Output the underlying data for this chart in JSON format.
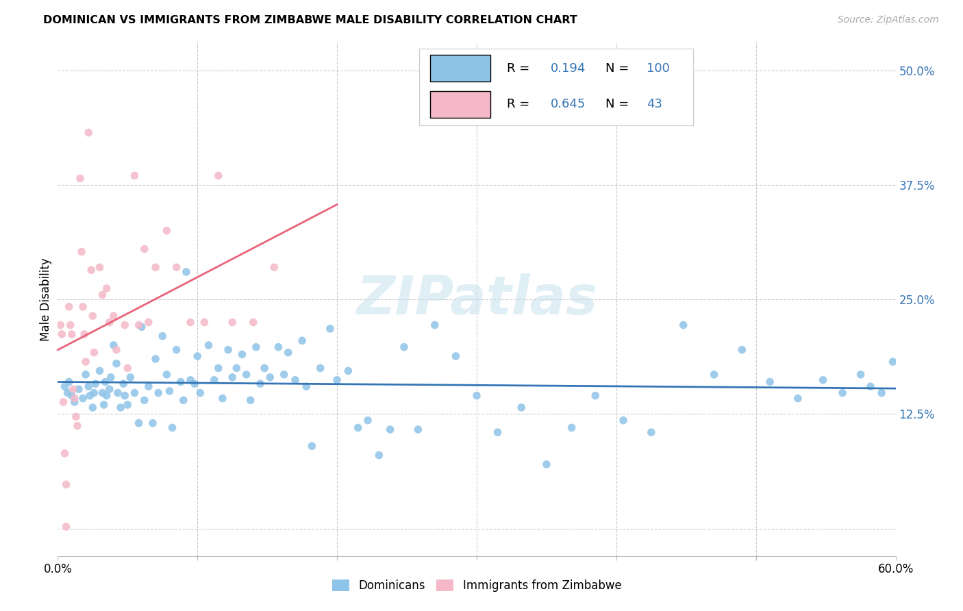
{
  "title": "DOMINICAN VS IMMIGRANTS FROM ZIMBABWE MALE DISABILITY CORRELATION CHART",
  "source": "Source: ZipAtlas.com",
  "ylabel": "Male Disability",
  "xlim": [
    0.0,
    0.6
  ],
  "ylim": [
    -0.03,
    0.53
  ],
  "xtick_positions": [
    0.0,
    0.1,
    0.2,
    0.3,
    0.4,
    0.5,
    0.6
  ],
  "xticklabels": [
    "0.0%",
    "",
    "",
    "",
    "",
    "",
    "60.0%"
  ],
  "ytick_positions": [
    0.0,
    0.125,
    0.25,
    0.375,
    0.5
  ],
  "ytick_labels_right": [
    "",
    "12.5%",
    "25.0%",
    "37.5%",
    "50.0%"
  ],
  "dominicans_R": "0.194",
  "dominicans_N": "100",
  "zimbabwe_R": "0.645",
  "zimbabwe_N": "43",
  "blue_scatter_color": "#8ec4e8",
  "pink_scatter_color": "#f4b8c8",
  "blue_line_color": "#3575b5",
  "pink_line_color": "#e8637a",
  "legend_text_color": "#3575b5",
  "legend_label_blue": "Dominicans",
  "legend_label_pink": "Immigrants from Zimbabwe",
  "watermark": "ZIPatlas",
  "dominicans_x": [
    0.005,
    0.007,
    0.008,
    0.01,
    0.012,
    0.015,
    0.018,
    0.02,
    0.022,
    0.023,
    0.025,
    0.026,
    0.027,
    0.03,
    0.032,
    0.033,
    0.034,
    0.035,
    0.037,
    0.038,
    0.04,
    0.042,
    0.043,
    0.045,
    0.047,
    0.048,
    0.05,
    0.052,
    0.055,
    0.058,
    0.06,
    0.062,
    0.065,
    0.068,
    0.07,
    0.072,
    0.075,
    0.078,
    0.08,
    0.082,
    0.085,
    0.088,
    0.09,
    0.092,
    0.095,
    0.098,
    0.1,
    0.102,
    0.108,
    0.112,
    0.115,
    0.118,
    0.122,
    0.125,
    0.128,
    0.132,
    0.135,
    0.138,
    0.142,
    0.145,
    0.148,
    0.152,
    0.158,
    0.162,
    0.165,
    0.17,
    0.175,
    0.178,
    0.182,
    0.188,
    0.195,
    0.2,
    0.208,
    0.215,
    0.222,
    0.23,
    0.238,
    0.248,
    0.258,
    0.27,
    0.285,
    0.3,
    0.315,
    0.332,
    0.35,
    0.368,
    0.385,
    0.405,
    0.425,
    0.448,
    0.47,
    0.49,
    0.51,
    0.53,
    0.548,
    0.562,
    0.575,
    0.582,
    0.59,
    0.598
  ],
  "dominicans_y": [
    0.155,
    0.148,
    0.16,
    0.145,
    0.138,
    0.152,
    0.142,
    0.168,
    0.155,
    0.145,
    0.132,
    0.148,
    0.158,
    0.172,
    0.148,
    0.135,
    0.16,
    0.145,
    0.152,
    0.165,
    0.2,
    0.18,
    0.148,
    0.132,
    0.158,
    0.145,
    0.135,
    0.165,
    0.148,
    0.115,
    0.22,
    0.14,
    0.155,
    0.115,
    0.185,
    0.148,
    0.21,
    0.168,
    0.15,
    0.11,
    0.195,
    0.16,
    0.14,
    0.28,
    0.162,
    0.158,
    0.188,
    0.148,
    0.2,
    0.162,
    0.175,
    0.142,
    0.195,
    0.165,
    0.175,
    0.19,
    0.168,
    0.14,
    0.198,
    0.158,
    0.175,
    0.165,
    0.198,
    0.168,
    0.192,
    0.162,
    0.205,
    0.155,
    0.09,
    0.175,
    0.218,
    0.162,
    0.172,
    0.11,
    0.118,
    0.08,
    0.108,
    0.198,
    0.108,
    0.222,
    0.188,
    0.145,
    0.105,
    0.132,
    0.07,
    0.11,
    0.145,
    0.118,
    0.105,
    0.222,
    0.168,
    0.195,
    0.16,
    0.142,
    0.162,
    0.148,
    0.168,
    0.155,
    0.148,
    0.182
  ],
  "zimbabwe_x": [
    0.002,
    0.003,
    0.004,
    0.005,
    0.006,
    0.006,
    0.008,
    0.009,
    0.01,
    0.011,
    0.012,
    0.013,
    0.014,
    0.016,
    0.017,
    0.018,
    0.019,
    0.02,
    0.022,
    0.024,
    0.025,
    0.026,
    0.03,
    0.032,
    0.035,
    0.037,
    0.04,
    0.042,
    0.048,
    0.05,
    0.055,
    0.058,
    0.062,
    0.065,
    0.07,
    0.078,
    0.085,
    0.095,
    0.105,
    0.115,
    0.125,
    0.14,
    0.155
  ],
  "zimbabwe_y": [
    0.222,
    0.212,
    0.138,
    0.082,
    0.048,
    0.002,
    0.242,
    0.222,
    0.212,
    0.152,
    0.142,
    0.122,
    0.112,
    0.382,
    0.302,
    0.242,
    0.212,
    0.182,
    0.432,
    0.282,
    0.232,
    0.192,
    0.285,
    0.255,
    0.262,
    0.225,
    0.232,
    0.195,
    0.222,
    0.175,
    0.385,
    0.222,
    0.305,
    0.225,
    0.285,
    0.325,
    0.285,
    0.225,
    0.225,
    0.385,
    0.225,
    0.225,
    0.285
  ]
}
